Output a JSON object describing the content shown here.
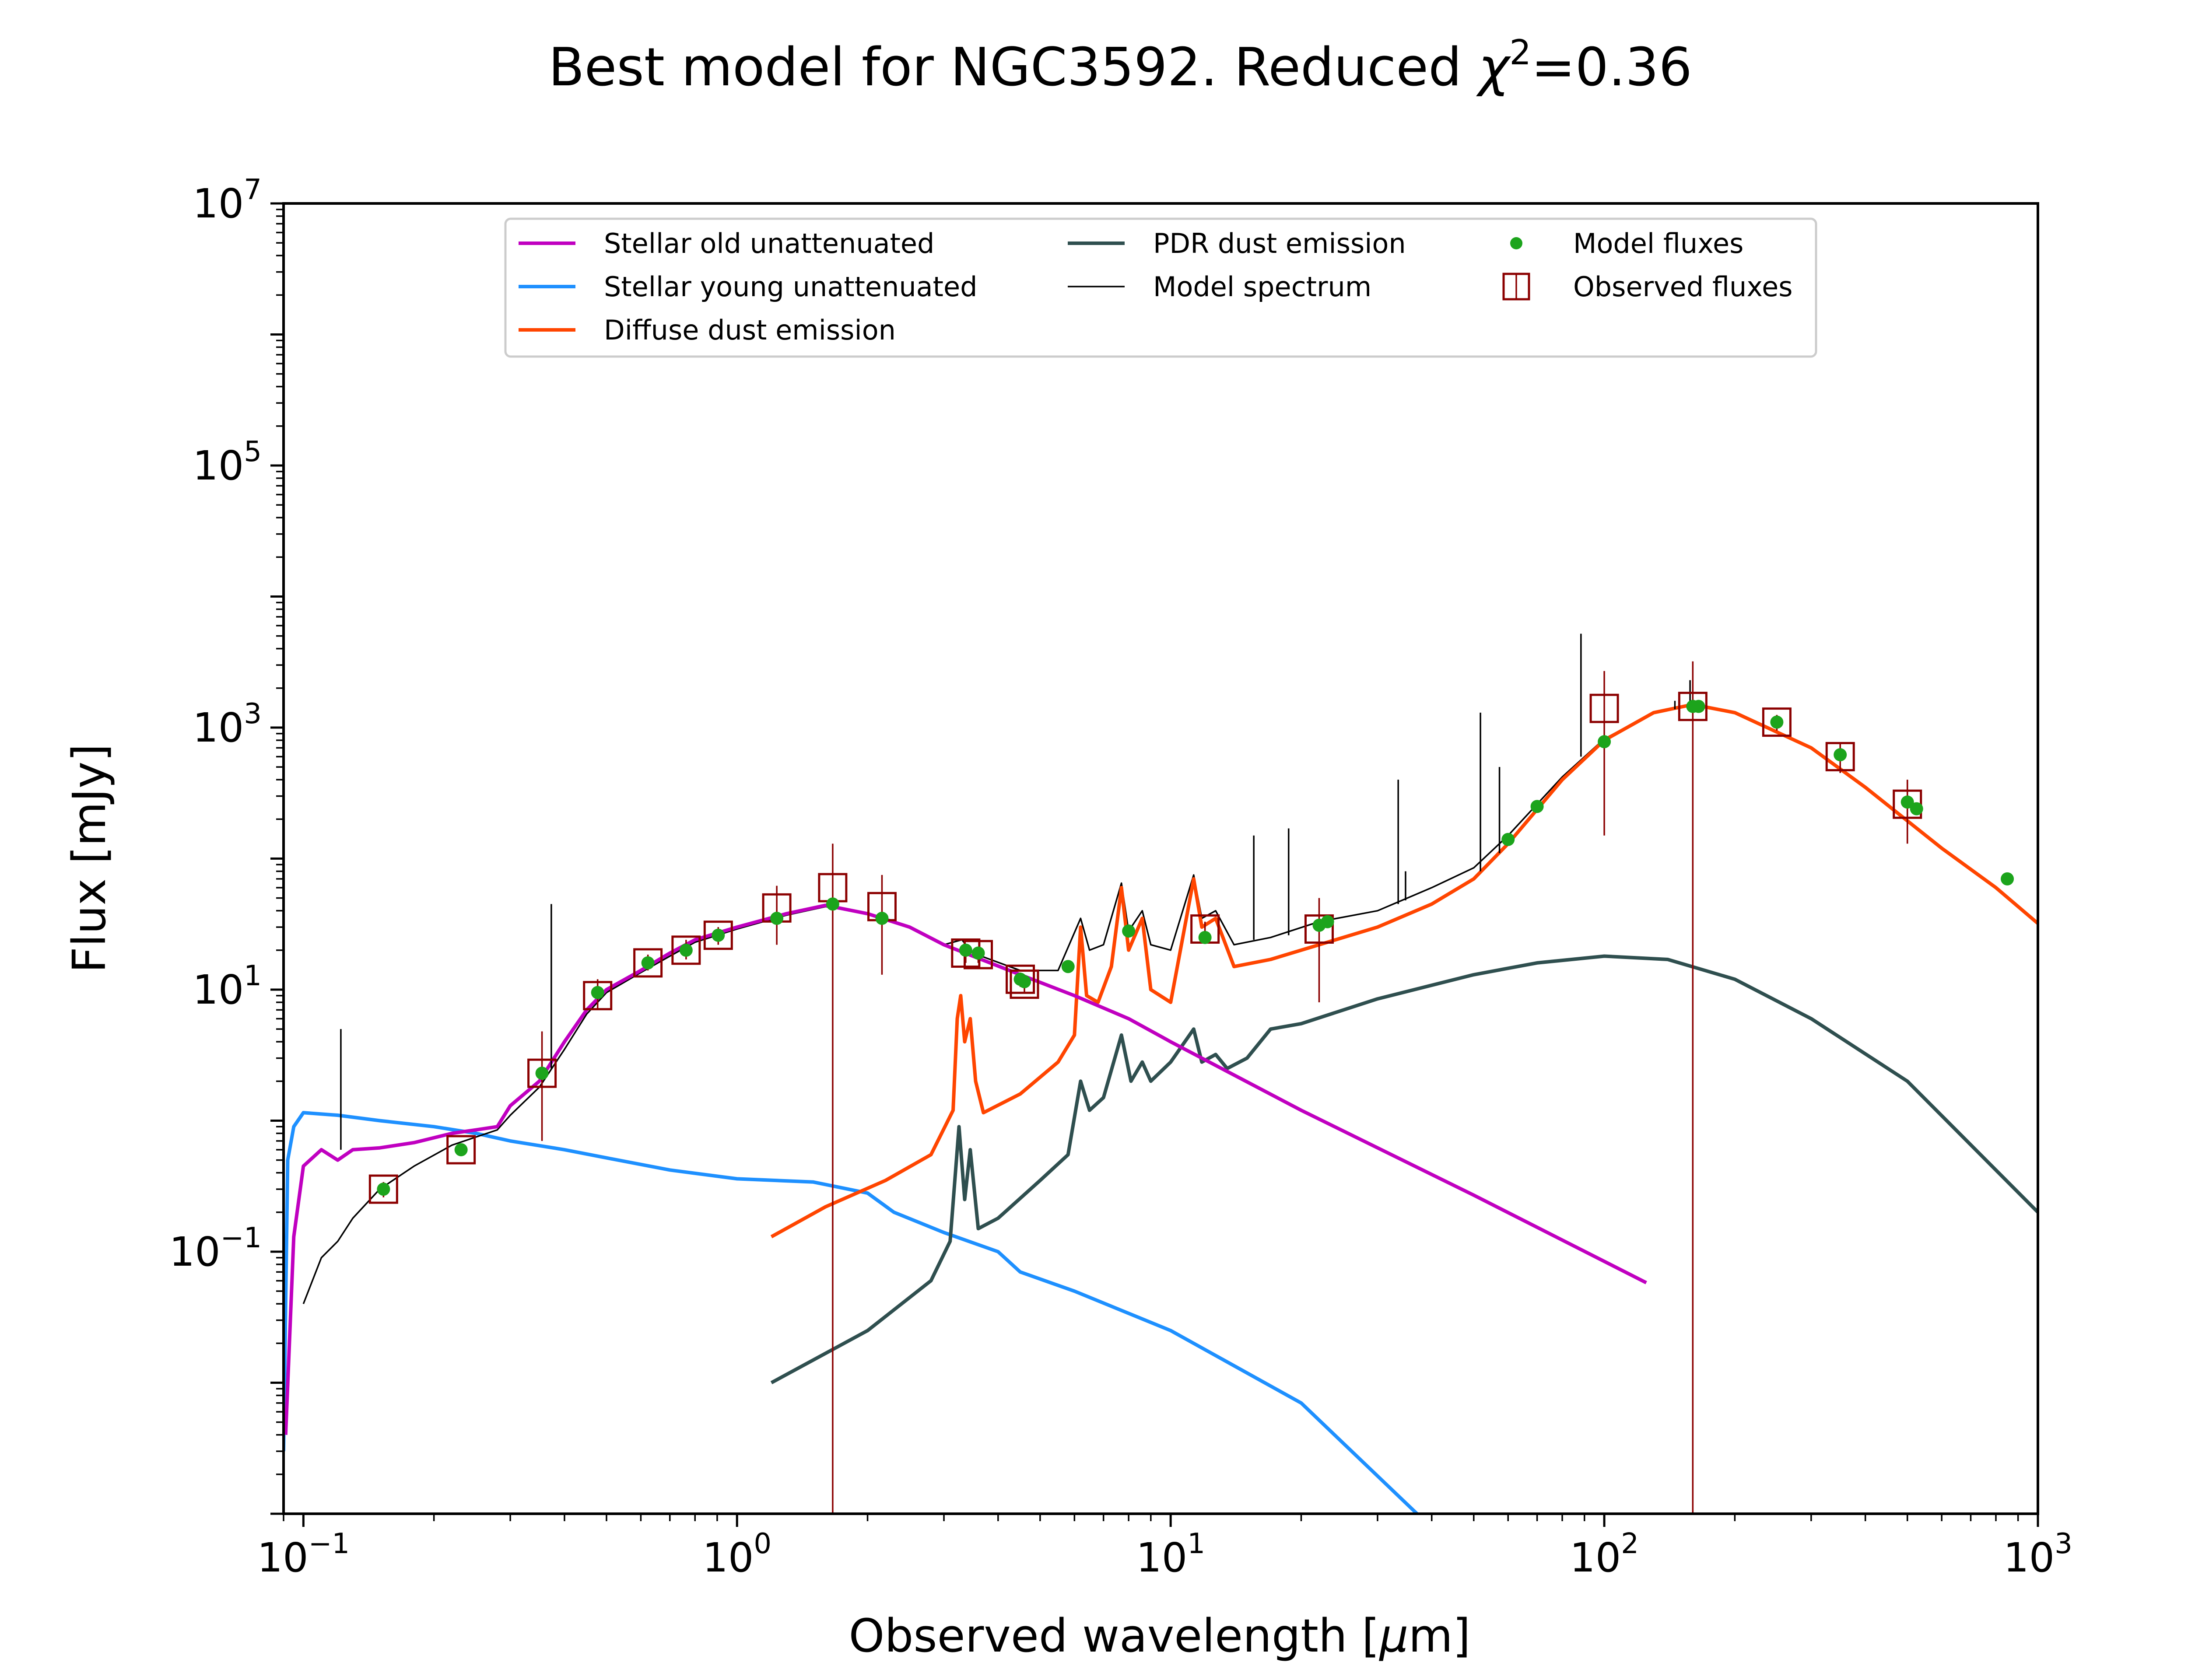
{
  "chart_data": {
    "type": "line",
    "title": "Best model for NGC3592. Reduced χ²=0.36",
    "title_main": "Best model for NGC3592. Reduced ",
    "title_chi": "χ",
    "title_exp": "2",
    "title_value": "=0.36",
    "xlabel": "Observed wavelength [μm]",
    "xlabel_main": "Observed wavelength [",
    "xlabel_mu": "μ",
    "xlabel_end": "m]",
    "ylabel": "Flux [mJy]",
    "xscale": "log",
    "yscale": "log",
    "xlim": [
      0.09,
      1000
    ],
    "ylim": [
      0.001,
      10000000
    ],
    "legend_position": "top-center",
    "x_ticks": [
      {
        "value": 0.1,
        "base": "10",
        "exp": "−1"
      },
      {
        "value": 1,
        "base": "10",
        "exp": "0"
      },
      {
        "value": 10,
        "base": "10",
        "exp": "1"
      },
      {
        "value": 100,
        "base": "10",
        "exp": "2"
      },
      {
        "value": 1000,
        "base": "10",
        "exp": "3"
      }
    ],
    "y_ticks": [
      {
        "value": 0.1,
        "base": "10",
        "exp": "−1"
      },
      {
        "value": 10,
        "base": "10",
        "exp": "1"
      },
      {
        "value": 1000,
        "base": "10",
        "exp": "3"
      },
      {
        "value": 100000,
        "base": "10",
        "exp": "5"
      },
      {
        "value": 10000000,
        "base": "10",
        "exp": "7"
      }
    ],
    "legend": [
      {
        "label": "Stellar old unattenuated",
        "color": "#c000c0",
        "kind": "line"
      },
      {
        "label": "Stellar young unattenuated",
        "color": "#1e90ff",
        "kind": "line"
      },
      {
        "label": "Diffuse dust emission",
        "color": "#ff4500",
        "kind": "line"
      },
      {
        "label": "PDR dust emission",
        "color": "#2f4f4f",
        "kind": "line"
      },
      {
        "label": "Model spectrum",
        "color": "#000000",
        "kind": "thinline"
      },
      {
        "label": "Model fluxes",
        "color": "#1ca41c",
        "kind": "dot"
      },
      {
        "label": "Observed fluxes",
        "color": "#8b0000",
        "kind": "square"
      }
    ],
    "series": [
      {
        "name": "Stellar old unattenuated",
        "color": "#c000c0",
        "points": [
          [
            0.091,
            0.004
          ],
          [
            0.095,
            0.13
          ],
          [
            0.1,
            0.45
          ],
          [
            0.11,
            0.6
          ],
          [
            0.12,
            0.5
          ],
          [
            0.13,
            0.6
          ],
          [
            0.15,
            0.62
          ],
          [
            0.18,
            0.68
          ],
          [
            0.22,
            0.8
          ],
          [
            0.25,
            0.85
          ],
          [
            0.28,
            0.9
          ],
          [
            0.3,
            1.3
          ],
          [
            0.35,
            2.0
          ],
          [
            0.4,
            4.0
          ],
          [
            0.45,
            7.0
          ],
          [
            0.5,
            10.0
          ],
          [
            0.6,
            14.0
          ],
          [
            0.7,
            19.0
          ],
          [
            0.8,
            24.0
          ],
          [
            1.0,
            30.0
          ],
          [
            1.3,
            38.0
          ],
          [
            1.6,
            44.0
          ],
          [
            2.0,
            38.0
          ],
          [
            2.5,
            30.0
          ],
          [
            3.0,
            22.0
          ],
          [
            3.5,
            18.0
          ],
          [
            4.5,
            13.0
          ],
          [
            6.0,
            9.0
          ],
          [
            8.0,
            6.0
          ],
          [
            10.0,
            4.0
          ],
          [
            20.0,
            1.2
          ],
          [
            50.0,
            0.27
          ],
          [
            125.0,
            0.058
          ]
        ]
      },
      {
        "name": "Stellar young unattenuated",
        "color": "#1e90ff",
        "points": [
          [
            0.09,
            0.003
          ],
          [
            0.092,
            0.5
          ],
          [
            0.095,
            0.9
          ],
          [
            0.1,
            1.15
          ],
          [
            0.12,
            1.1
          ],
          [
            0.15,
            1.0
          ],
          [
            0.2,
            0.9
          ],
          [
            0.25,
            0.8
          ],
          [
            0.3,
            0.7
          ],
          [
            0.4,
            0.6
          ],
          [
            0.5,
            0.52
          ],
          [
            0.7,
            0.42
          ],
          [
            1.0,
            0.36
          ],
          [
            1.5,
            0.34
          ],
          [
            2.0,
            0.28
          ],
          [
            2.3,
            0.2
          ],
          [
            3.0,
            0.14
          ],
          [
            4.0,
            0.1
          ],
          [
            4.5,
            0.07
          ],
          [
            6.0,
            0.05
          ],
          [
            10.0,
            0.025
          ],
          [
            20.0,
            0.007
          ],
          [
            37.0,
            0.001
          ]
        ]
      },
      {
        "name": "Diffuse dust emission",
        "color": "#ff4500",
        "points": [
          [
            1.2,
            0.13
          ],
          [
            1.6,
            0.22
          ],
          [
            2.2,
            0.35
          ],
          [
            2.8,
            0.55
          ],
          [
            3.15,
            1.2
          ],
          [
            3.22,
            6.0
          ],
          [
            3.28,
            9.0
          ],
          [
            3.35,
            4.0
          ],
          [
            3.45,
            6.0
          ],
          [
            3.55,
            2.0
          ],
          [
            3.7,
            1.15
          ],
          [
            4.5,
            1.6
          ],
          [
            5.5,
            2.8
          ],
          [
            6.0,
            4.5
          ],
          [
            6.2,
            30.0
          ],
          [
            6.4,
            9.0
          ],
          [
            6.8,
            8.0
          ],
          [
            7.3,
            15.0
          ],
          [
            7.7,
            60.0
          ],
          [
            8.0,
            20.0
          ],
          [
            8.6,
            35.0
          ],
          [
            9.0,
            10.0
          ],
          [
            10.0,
            8.0
          ],
          [
            11.3,
            70.0
          ],
          [
            11.8,
            30.0
          ],
          [
            12.7,
            35.0
          ],
          [
            14.0,
            15.0
          ],
          [
            17.0,
            17.0
          ],
          [
            22.0,
            22.0
          ],
          [
            30.0,
            30.0
          ],
          [
            40.0,
            45.0
          ],
          [
            50.0,
            70.0
          ],
          [
            60.0,
            130.0
          ],
          [
            80.0,
            400.0
          ],
          [
            100.0,
            800.0
          ],
          [
            130.0,
            1300.0
          ],
          [
            160.0,
            1500.0
          ],
          [
            200.0,
            1300.0
          ],
          [
            300.0,
            700.0
          ],
          [
            400.0,
            350.0
          ],
          [
            600.0,
            120.0
          ],
          [
            800.0,
            60.0
          ],
          [
            1000.0,
            32.0
          ]
        ]
      },
      {
        "name": "PDR dust emission",
        "color": "#2f4f4f",
        "points": [
          [
            1.2,
            0.01
          ],
          [
            2.0,
            0.025
          ],
          [
            2.8,
            0.06
          ],
          [
            3.1,
            0.12
          ],
          [
            3.25,
            0.9
          ],
          [
            3.35,
            0.25
          ],
          [
            3.45,
            0.6
          ],
          [
            3.6,
            0.15
          ],
          [
            4.0,
            0.18
          ],
          [
            5.0,
            0.35
          ],
          [
            5.8,
            0.55
          ],
          [
            6.2,
            2.0
          ],
          [
            6.5,
            1.2
          ],
          [
            7.0,
            1.5
          ],
          [
            7.7,
            4.5
          ],
          [
            8.1,
            2.0
          ],
          [
            8.6,
            2.8
          ],
          [
            9.0,
            2.0
          ],
          [
            10.0,
            2.8
          ],
          [
            11.3,
            5.0
          ],
          [
            11.8,
            2.8
          ],
          [
            12.7,
            3.2
          ],
          [
            13.5,
            2.5
          ],
          [
            15.0,
            3.0
          ],
          [
            17.0,
            5.0
          ],
          [
            20.0,
            5.5
          ],
          [
            30.0,
            8.5
          ],
          [
            50.0,
            13.0
          ],
          [
            70.0,
            16.0
          ],
          [
            100.0,
            18.0
          ],
          [
            140.0,
            17.0
          ],
          [
            200.0,
            12.0
          ],
          [
            300.0,
            6.0
          ],
          [
            500.0,
            2.0
          ],
          [
            1000.0,
            0.2
          ]
        ]
      },
      {
        "name": "Model spectrum",
        "color": "#000000",
        "points": [
          [
            0.1,
            0.04
          ],
          [
            0.11,
            0.09
          ],
          [
            0.12,
            0.12
          ],
          [
            0.13,
            0.18
          ],
          [
            0.15,
            0.3
          ],
          [
            0.18,
            0.45
          ],
          [
            0.22,
            0.65
          ],
          [
            0.25,
            0.75
          ],
          [
            0.28,
            0.85
          ],
          [
            0.3,
            1.1
          ],
          [
            0.35,
            1.8
          ],
          [
            0.4,
            3.5
          ],
          [
            0.45,
            6.5
          ],
          [
            0.5,
            9.5
          ],
          [
            0.6,
            13.5
          ],
          [
            0.7,
            18.0
          ],
          [
            0.8,
            23.0
          ],
          [
            1.0,
            29.0
          ],
          [
            1.3,
            37.0
          ],
          [
            1.6,
            43.0
          ],
          [
            2.0,
            38.0
          ],
          [
            2.5,
            30.0
          ],
          [
            3.0,
            22.0
          ],
          [
            3.3,
            24.0
          ],
          [
            3.5,
            19.0
          ],
          [
            4.5,
            14.0
          ],
          [
            5.5,
            14.0
          ],
          [
            6.2,
            35.0
          ],
          [
            6.5,
            20.0
          ],
          [
            7.0,
            22.0
          ],
          [
            7.7,
            65.0
          ],
          [
            8.0,
            28.0
          ],
          [
            8.6,
            40.0
          ],
          [
            9.0,
            22.0
          ],
          [
            10.0,
            20.0
          ],
          [
            11.3,
            75.0
          ],
          [
            11.8,
            35.0
          ],
          [
            12.7,
            40.0
          ],
          [
            14.0,
            22.0
          ],
          [
            17.0,
            25.0
          ],
          [
            22.0,
            33.0
          ],
          [
            30.0,
            40.0
          ],
          [
            40.0,
            60.0
          ],
          [
            50.0,
            85.0
          ],
          [
            60.0,
            150.0
          ],
          [
            80.0,
            420.0
          ],
          [
            100.0,
            820.0
          ],
          [
            130.0,
            1300.0
          ],
          [
            160.0,
            1500.0
          ],
          [
            200.0,
            1300.0
          ],
          [
            300.0,
            700.0
          ],
          [
            400.0,
            350.0
          ],
          [
            600.0,
            120.0
          ],
          [
            800.0,
            60.0
          ],
          [
            1000.0,
            32.0
          ]
        ]
      }
    ],
    "emission_lines": [
      {
        "x": 0.122,
        "ytop": 5.0,
        "ybase": 0.6
      },
      {
        "x": 0.373,
        "ytop": 45.0,
        "ybase": 2.5
      },
      {
        "x": 15.55,
        "ytop": 150.0,
        "ybase": 24.0
      },
      {
        "x": 18.71,
        "ytop": 170.0,
        "ybase": 26.0
      },
      {
        "x": 33.48,
        "ytop": 400.0,
        "ybase": 45.0
      },
      {
        "x": 34.81,
        "ytop": 80.0,
        "ybase": 48.0
      },
      {
        "x": 51.81,
        "ytop": 1300.0,
        "ybase": 80.0
      },
      {
        "x": 57.32,
        "ytop": 500.0,
        "ybase": 110.0
      },
      {
        "x": 88.36,
        "ytop": 5200.0,
        "ybase": 600.0
      },
      {
        "x": 145.5,
        "ytop": 1600.0,
        "ybase": 1380.0
      },
      {
        "x": 157.7,
        "ytop": 2300.0,
        "ybase": 1480.0
      }
    ],
    "model_fluxes": {
      "name": "Model fluxes",
      "color": "#1ca41c",
      "points": [
        [
          0.153,
          0.3
        ],
        [
          0.231,
          0.6
        ],
        [
          0.355,
          2.3
        ],
        [
          0.477,
          9.5
        ],
        [
          0.623,
          16.0
        ],
        [
          0.763,
          20.0
        ],
        [
          0.905,
          26.0
        ],
        [
          1.235,
          35.0
        ],
        [
          1.662,
          45.0
        ],
        [
          2.159,
          35.0
        ],
        [
          3.368,
          20.0
        ],
        [
          3.6,
          19.0
        ],
        [
          4.5,
          12.0
        ],
        [
          4.6,
          11.5
        ],
        [
          5.8,
          15.0
        ],
        [
          8.0,
          28.0
        ],
        [
          12.0,
          25.0
        ],
        [
          22.0,
          31.0
        ],
        [
          23.0,
          33.0
        ],
        [
          60.0,
          140.0
        ],
        [
          70.0,
          250.0
        ],
        [
          100.0,
          780.0
        ],
        [
          160.0,
          1450.0
        ],
        [
          165.0,
          1450.0
        ],
        [
          250.0,
          1100.0
        ],
        [
          350.0,
          620.0
        ],
        [
          500.0,
          270.0
        ],
        [
          525.0,
          240.0
        ],
        [
          850.0,
          70.0
        ]
      ]
    },
    "observed_fluxes": {
      "name": "Observed fluxes",
      "color": "#8b0000",
      "points": [
        {
          "x": 0.153,
          "y": 0.3,
          "ylo": 0.26,
          "yhi": 0.34
        },
        {
          "x": 0.231,
          "y": 0.6,
          "ylo": 0.54,
          "yhi": 0.66
        },
        {
          "x": 0.355,
          "y": 2.3,
          "ylo": 0.7,
          "yhi": 4.8
        },
        {
          "x": 0.477,
          "y": 9.0,
          "ylo": 7.0,
          "yhi": 12.0
        },
        {
          "x": 0.623,
          "y": 16.0,
          "ylo": 14.0,
          "yhi": 18.5
        },
        {
          "x": 0.763,
          "y": 20.0,
          "ylo": 17.0,
          "yhi": 24.0
        },
        {
          "x": 0.905,
          "y": 26.0,
          "ylo": 22.0,
          "yhi": 30.0
        },
        {
          "x": 1.235,
          "y": 42.0,
          "ylo": 22.0,
          "yhi": 62.0
        },
        {
          "x": 1.662,
          "y": 60.0,
          "ylo": 0.001,
          "yhi": 130.0
        },
        {
          "x": 2.159,
          "y": 43.0,
          "ylo": 13.0,
          "yhi": 75.0
        },
        {
          "x": 3.368,
          "y": 19.0,
          "ylo": 16.0,
          "yhi": 22.0
        },
        {
          "x": 3.6,
          "y": 18.5,
          "ylo": 16.0,
          "yhi": 21.0
        },
        {
          "x": 4.5,
          "y": 12.0,
          "ylo": 10.5,
          "yhi": 13.5
        },
        {
          "x": 4.6,
          "y": 11.0,
          "ylo": 9.5,
          "yhi": 12.5
        },
        {
          "x": 12.0,
          "y": 29.0,
          "ylo": 25.0,
          "yhi": 33.0
        },
        {
          "x": 22.0,
          "y": 29.0,
          "ylo": 8.0,
          "yhi": 50.0
        },
        {
          "x": 100.0,
          "y": 1400.0,
          "ylo": 150.0,
          "yhi": 2700.0
        },
        {
          "x": 160.0,
          "y": 1450.0,
          "ylo": 0.001,
          "yhi": 3200.0
        },
        {
          "x": 250.0,
          "y": 1100.0,
          "ylo": 950.0,
          "yhi": 1250.0
        },
        {
          "x": 350.0,
          "y": 600.0,
          "ylo": 450.0,
          "yhi": 750.0
        },
        {
          "x": 500.0,
          "y": 260.0,
          "ylo": 130.0,
          "yhi": 400.0
        }
      ]
    },
    "grid": false
  }
}
